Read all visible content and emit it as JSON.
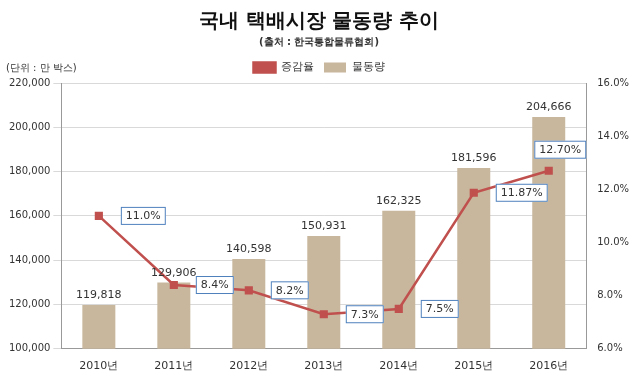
{
  "chart_data": {
    "type": "bar",
    "title": "국내 택배시장 물동량 추이",
    "subtitle": "(출처 : 한국통합물류협회)",
    "ylabel": "(단위 : 만 박스)",
    "categories": [
      "2010년",
      "2011년",
      "2012년",
      "2013년",
      "2014년",
      "2015년",
      "2016년"
    ],
    "series": [
      {
        "name": "물동량",
        "type": "bar",
        "color": "#c8b79c",
        "values": [
          119818,
          129906,
          140598,
          150931,
          162325,
          181596,
          204666
        ],
        "value_labels": [
          "119,818",
          "129,906",
          "140,598",
          "150,931",
          "162,325",
          "181,596",
          "204,666"
        ],
        "data_labels": true
      },
      {
        "name": "증감율",
        "type": "line",
        "color": "#c0504d",
        "marker": "square",
        "axis": "y2",
        "values": [
          11,
          8.4,
          8.2,
          7.3,
          7.5,
          11.87,
          12.7
        ],
        "value_labels": [
          "11.0%",
          "8.4%",
          "8.2%",
          "7.3%",
          "7.5%",
          "11.87%",
          "12.70%"
        ],
        "data_labels": true
      }
    ],
    "ylim": [
      100000,
      220000
    ],
    "yticks": [
      {
        "value": 100000,
        "label": "100,000"
      },
      {
        "value": 120000,
        "label": "120,000"
      },
      {
        "value": 140000,
        "label": "140,000"
      },
      {
        "value": 160000,
        "label": "160,000"
      },
      {
        "value": 180000,
        "label": "180,000"
      },
      {
        "value": 200000,
        "label": "200,000"
      },
      {
        "value": 220000,
        "label": "220,000"
      }
    ],
    "y2lim": [
      6,
      16
    ],
    "y2ticks": [
      {
        "value": 6,
        "label": "6.0%"
      },
      {
        "value": 8,
        "label": "8.0%"
      },
      {
        "value": 10,
        "label": "10.0%"
      },
      {
        "value": 12,
        "label": "12.0%"
      },
      {
        "value": 14,
        "label": "14.0%"
      },
      {
        "value": 16,
        "label": "16.0%"
      }
    ],
    "grid": true,
    "legend": "top"
  }
}
